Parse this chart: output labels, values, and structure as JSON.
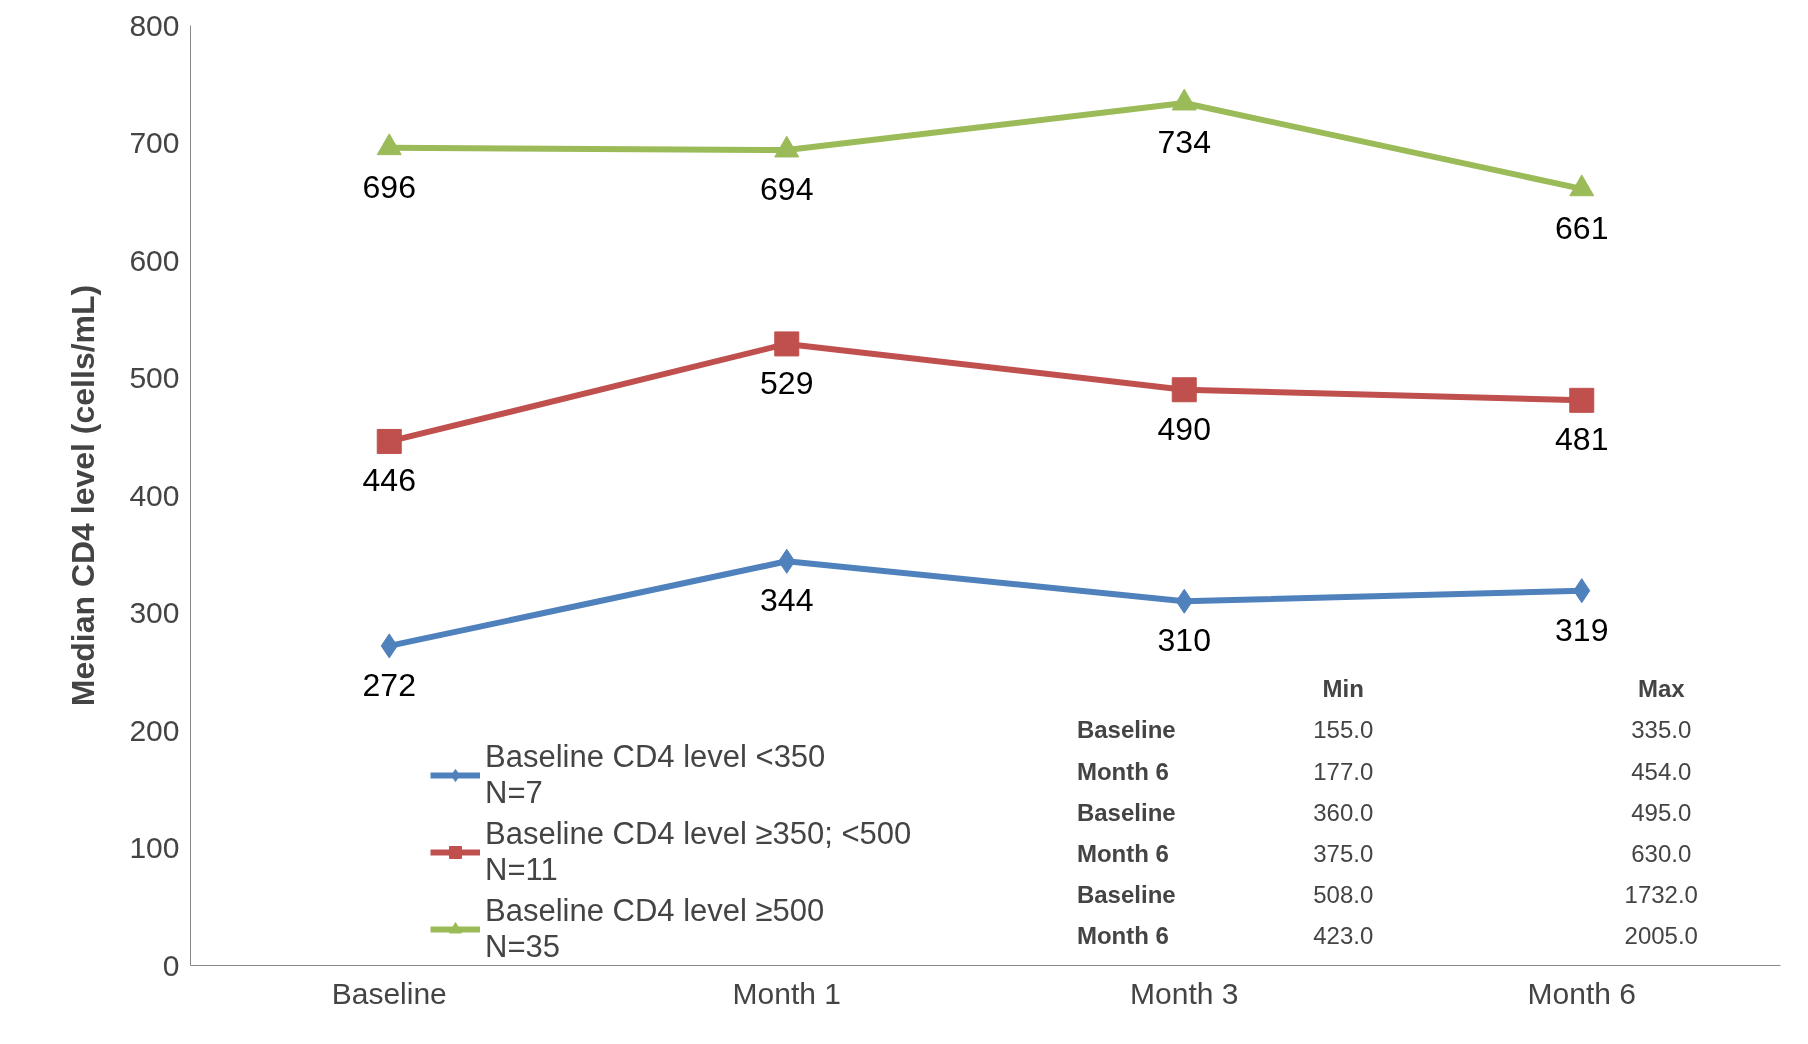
{
  "chart_data": {
    "type": "line",
    "ylabel": "Median CD4 level (cells/mL)",
    "categories": [
      "Baseline",
      "Month 1",
      "Month 3",
      "Month 6"
    ],
    "series": [
      {
        "name": "Baseline CD4 level <350\nN=7",
        "color": "#4f81bd",
        "marker": "diamond",
        "values": [
          272,
          344,
          310,
          319
        ]
      },
      {
        "name": "Baseline CD4 level ≥350; <500\nN=11",
        "color": "#c0504d",
        "marker": "square",
        "values": [
          446,
          529,
          490,
          481
        ]
      },
      {
        "name": "Baseline CD4 level ≥500\nN=35",
        "color": "#9bbb59",
        "marker": "triangle",
        "values": [
          696,
          694,
          734,
          661
        ]
      }
    ],
    "ylim": [
      0,
      800
    ],
    "yticks": [
      0,
      100,
      200,
      300,
      400,
      500,
      600,
      700,
      800
    ],
    "grid": false,
    "legend": "bottom left",
    "data_labels": true,
    "annotations": [
      "Min",
      "Max",
      "Baseline",
      "155.0",
      "335.0",
      "Month 6",
      "177.0",
      "454.0",
      "Baseline",
      "360.0",
      "495.0",
      "Month 6",
      "375.0",
      "630.0",
      "Baseline",
      "508.0",
      "1732.0",
      "Month 6",
      "423.0",
      "2005.0"
    ]
  }
}
